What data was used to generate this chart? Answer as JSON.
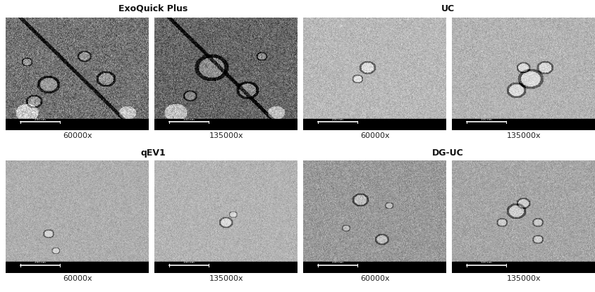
{
  "figure_width": 8.44,
  "figure_height": 4.15,
  "dpi": 100,
  "background_color": "#ffffff",
  "group_labels": [
    {
      "text": "ExoQuick Plus",
      "bold": true,
      "col_span": [
        0,
        1
      ],
      "row": 0
    },
    {
      "text": "UC",
      "bold": true,
      "col_span": [
        2,
        3
      ],
      "row": 0
    },
    {
      "text": "qEV1",
      "bold": true,
      "col_span": [
        0,
        1
      ],
      "row": 1
    },
    {
      "text": "DG-UC",
      "bold": true,
      "col_span": [
        2,
        3
      ],
      "row": 1
    }
  ],
  "panel_labels": [
    [
      "60000x",
      "135000x",
      "60000x",
      "135000x"
    ],
    [
      "60000x",
      "135000x",
      "60000x",
      "135000x"
    ]
  ],
  "scale_bar_texts": [
    [
      "200 nm",
      "100 nm",
      "200 nm",
      "100 nm"
    ],
    [
      "200 nm",
      "100 nm",
      "200 nm",
      "100 nm"
    ]
  ],
  "panel_bg_colors": [
    [
      "#7a7a7a",
      "#696969",
      "#c8c8c8",
      "#b8b8b8"
    ],
    [
      "#b0b0b0",
      "#b8b8b8",
      "#b0b0b0",
      "#b8b8b8"
    ]
  ],
  "label_fontsize": 8,
  "group_label_fontsize": 9,
  "scalebar_color": "#ffffff",
  "panel_border_color": "#000000"
}
